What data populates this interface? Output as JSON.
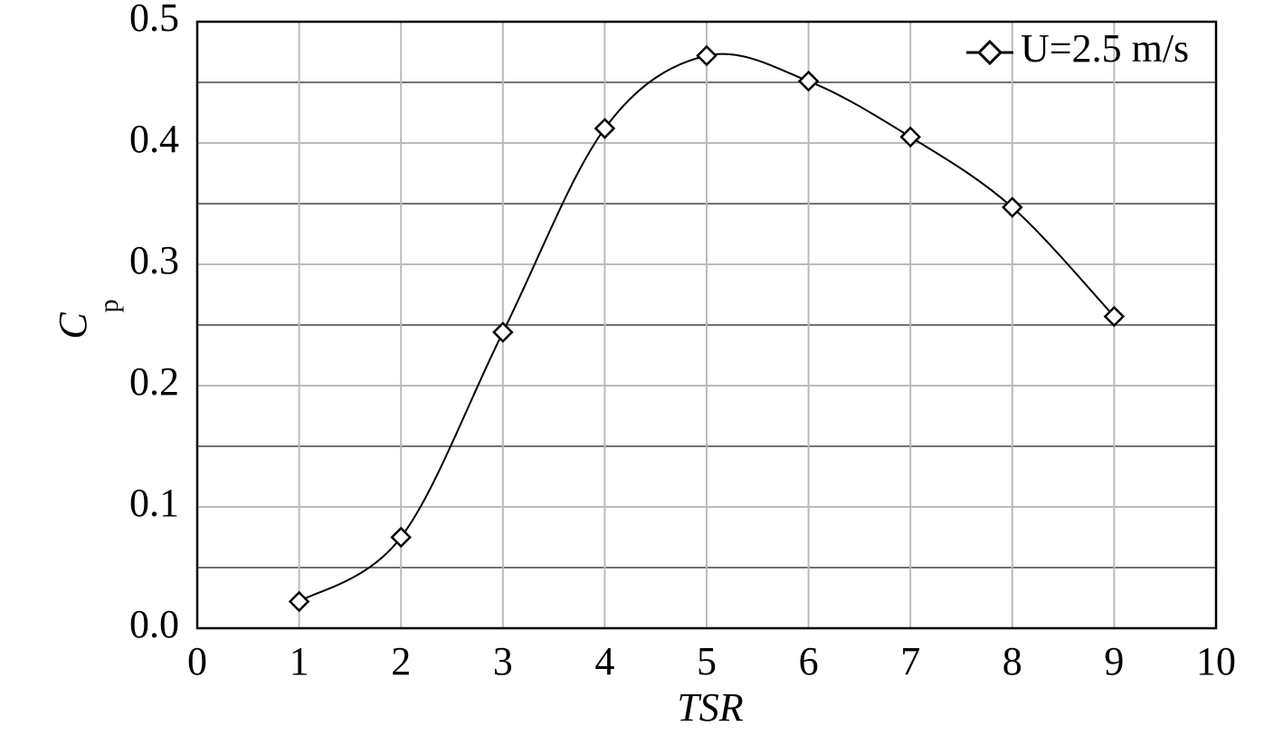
{
  "chart_data": {
    "type": "line",
    "xlabel": "TSR",
    "ylabel": "C",
    "ylabel_sub": "p",
    "x": [
      1,
      2,
      3,
      4,
      5,
      6,
      7,
      8,
      9
    ],
    "series": [
      {
        "name": "U=2.5 m/s",
        "color": "#000000",
        "values": [
          0.022,
          0.075,
          0.244,
          0.412,
          0.472,
          0.451,
          0.405,
          0.347,
          0.257
        ]
      }
    ],
    "xlim": [
      0,
      10
    ],
    "xticks": [
      0,
      1,
      2,
      3,
      4,
      5,
      6,
      7,
      8,
      9,
      10
    ],
    "ylim": [
      0,
      0.5
    ],
    "yticks": [
      {
        "value": 0,
        "label": "0.0"
      },
      0.1,
      0.2,
      0.3,
      0.4,
      0.5
    ],
    "y_minor_grid": [
      0.05,
      0.15,
      0.25,
      0.35,
      0.45
    ],
    "grid": true,
    "smooth": true,
    "marker": "diamond",
    "legend": "upper right"
  }
}
